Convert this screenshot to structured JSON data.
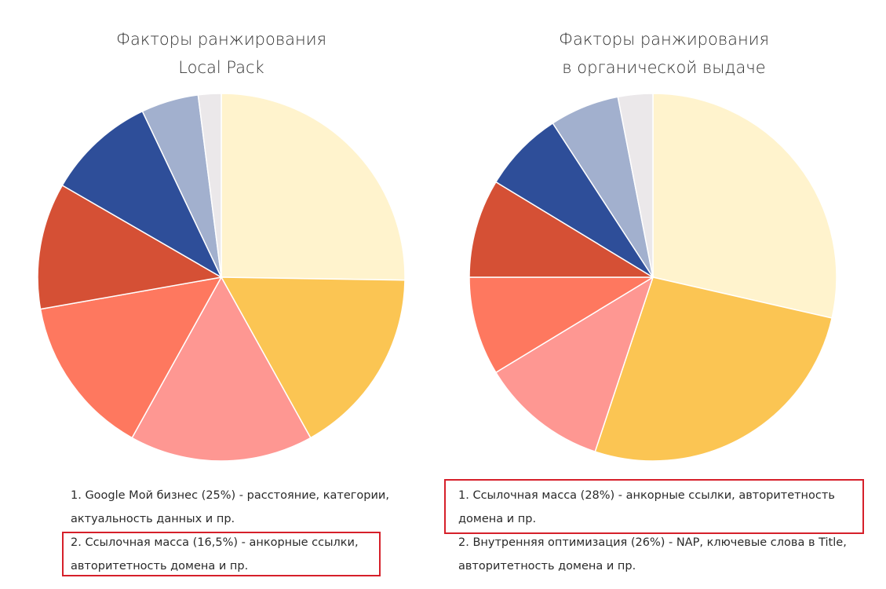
{
  "chart_data": [
    {
      "type": "pie",
      "title": [
        "Факторы ранжирования",
        "Local Pack"
      ],
      "slices": [
        {
          "value": 25,
          "color": "#fff3cd"
        },
        {
          "value": 16.5,
          "color": "#fbc553"
        },
        {
          "value": 16,
          "color": "#fe9792"
        },
        {
          "value": 14,
          "color": "#fe785f"
        },
        {
          "value": 11,
          "color": "#d55035"
        },
        {
          "value": 9.5,
          "color": "#2e4e99"
        },
        {
          "value": 5,
          "color": "#a2b0ce"
        },
        {
          "value": 2,
          "color": "#ebe8ea"
        }
      ],
      "notes": [
        "1. Google Мой бизнес (25%) - расстояние, категории, актуальность данных и пр.",
        "2. Ссылочная масса (16,5%) - анкорные ссылки, авторитетность домена и пр."
      ],
      "highlighted_note": 2
    },
    {
      "type": "pie",
      "title": [
        "Факторы ранжирования",
        "в органической выдаче"
      ],
      "slices": [
        {
          "value": 28,
          "color": "#fff3cd"
        },
        {
          "value": 26,
          "color": "#fbc553"
        },
        {
          "value": 11,
          "color": "#fe9792"
        },
        {
          "value": 8.5,
          "color": "#fe785f"
        },
        {
          "value": 8.5,
          "color": "#d55035"
        },
        {
          "value": 7,
          "color": "#2e4e99"
        },
        {
          "value": 6,
          "color": "#a2b0ce"
        },
        {
          "value": 3,
          "color": "#ebe8ea"
        }
      ],
      "notes": [
        "1. Ссылочная масса (28%) - анкорные ссылки, авторитетность домена и пр.",
        "2. Внутренняя оптимизация (26%) - NAP, ключевые слова в Title, авторитетность домена и пр."
      ],
      "highlighted_note": 1
    }
  ]
}
